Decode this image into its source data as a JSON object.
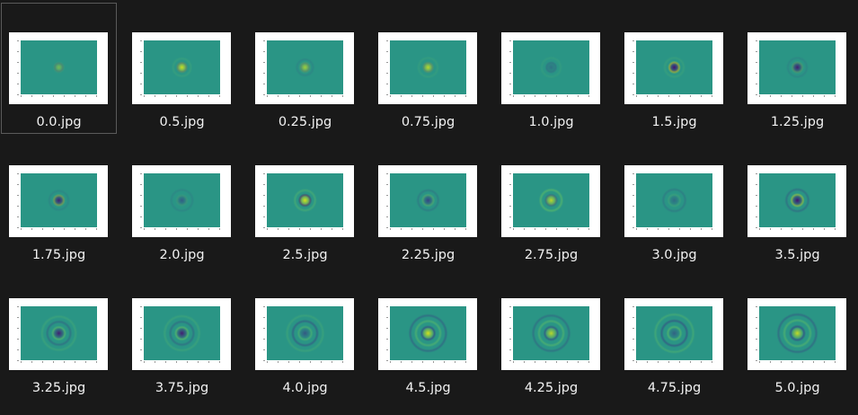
{
  "colors": {
    "background": "#191919",
    "selection_border": "#5a5a5a",
    "label": "#f2f2f2",
    "thumbnail_frame": "#ffffff",
    "plot_base": "#2a9585",
    "plot_bright": "#d2e21b",
    "plot_light": "#6fcc5b",
    "plot_dark": "#3a2f82",
    "plot_deep": "#45106f"
  },
  "files": [
    {
      "name": "0.0.jpg",
      "selected": true,
      "icon": "thumbnail-image",
      "pattern": {
        "center": "bright",
        "strength": 0.45,
        "rings": [
          {
            "r": 0.18,
            "tone": "dark",
            "a": 0.25
          }
        ]
      }
    },
    {
      "name": "0.5.jpg",
      "selected": false,
      "icon": "thumbnail-image",
      "pattern": {
        "center": "bright",
        "strength": 0.95,
        "rings": [
          {
            "r": 0.2,
            "tone": "dark",
            "a": 0.35
          },
          {
            "r": 0.42,
            "tone": "light",
            "a": 0.15
          }
        ]
      }
    },
    {
      "name": "0.25.jpg",
      "selected": false,
      "icon": "thumbnail-image",
      "pattern": {
        "center": "bright",
        "strength": 0.7,
        "rings": [
          {
            "r": 0.18,
            "tone": "dark",
            "a": 0.25
          },
          {
            "r": 0.38,
            "tone": "dark",
            "a": 0.12
          }
        ]
      }
    },
    {
      "name": "0.75.jpg",
      "selected": false,
      "icon": "thumbnail-image",
      "pattern": {
        "center": "bright",
        "strength": 0.85,
        "rings": [
          {
            "r": 0.2,
            "tone": "dark",
            "a": 0.25
          },
          {
            "r": 0.45,
            "tone": "light",
            "a": 0.12
          }
        ]
      }
    },
    {
      "name": "1.0.jpg",
      "selected": false,
      "icon": "thumbnail-image",
      "pattern": {
        "center": "dark",
        "strength": 0.35,
        "rings": [
          {
            "r": 0.22,
            "tone": "dark",
            "a": 0.18
          },
          {
            "r": 0.45,
            "tone": "light",
            "a": 0.1
          }
        ]
      }
    },
    {
      "name": "1.5.jpg",
      "selected": false,
      "icon": "thumbnail-image",
      "pattern": {
        "center": "deep",
        "strength": 1.0,
        "rings": [
          {
            "r": 0.22,
            "tone": "bright",
            "a": 0.7
          },
          {
            "r": 0.45,
            "tone": "light",
            "a": 0.15
          }
        ]
      }
    },
    {
      "name": "1.25.jpg",
      "selected": false,
      "icon": "thumbnail-image",
      "pattern": {
        "center": "deep",
        "strength": 0.9,
        "rings": [
          {
            "r": 0.22,
            "tone": "light",
            "a": 0.45
          },
          {
            "r": 0.45,
            "tone": "dark",
            "a": 0.12
          }
        ]
      }
    },
    {
      "name": "1.75.jpg",
      "selected": false,
      "icon": "thumbnail-image",
      "pattern": {
        "center": "deep",
        "strength": 0.9,
        "rings": [
          {
            "r": 0.22,
            "tone": "bright",
            "a": 0.45
          },
          {
            "r": 0.45,
            "tone": "dark",
            "a": 0.12
          }
        ]
      }
    },
    {
      "name": "2.0.jpg",
      "selected": false,
      "icon": "thumbnail-image",
      "pattern": {
        "center": "dark",
        "strength": 0.55,
        "rings": [
          {
            "r": 0.22,
            "tone": "light",
            "a": 0.2
          },
          {
            "r": 0.5,
            "tone": "dark",
            "a": 0.12
          }
        ]
      }
    },
    {
      "name": "2.5.jpg",
      "selected": false,
      "icon": "thumbnail-image",
      "pattern": {
        "center": "bright",
        "strength": 1.0,
        "rings": [
          {
            "r": 0.24,
            "tone": "deep",
            "a": 0.6
          },
          {
            "r": 0.48,
            "tone": "light",
            "a": 0.3
          }
        ]
      }
    },
    {
      "name": "2.25.jpg",
      "selected": false,
      "icon": "thumbnail-image",
      "pattern": {
        "center": "dark",
        "strength": 0.8,
        "rings": [
          {
            "r": 0.24,
            "tone": "light",
            "a": 0.45
          },
          {
            "r": 0.48,
            "tone": "dark",
            "a": 0.2
          }
        ]
      }
    },
    {
      "name": "2.75.jpg",
      "selected": false,
      "icon": "thumbnail-image",
      "pattern": {
        "center": "bright",
        "strength": 0.85,
        "rings": [
          {
            "r": 0.24,
            "tone": "dark",
            "a": 0.4
          },
          {
            "r": 0.5,
            "tone": "light",
            "a": 0.45
          }
        ]
      }
    },
    {
      "name": "3.0.jpg",
      "selected": false,
      "icon": "thumbnail-image",
      "pattern": {
        "center": "dark",
        "strength": 0.4,
        "rings": [
          {
            "r": 0.26,
            "tone": "light",
            "a": 0.2
          },
          {
            "r": 0.52,
            "tone": "dark",
            "a": 0.2
          }
        ]
      }
    },
    {
      "name": "3.5.jpg",
      "selected": false,
      "icon": "thumbnail-image",
      "pattern": {
        "center": "deep",
        "strength": 1.0,
        "rings": [
          {
            "r": 0.26,
            "tone": "bright",
            "a": 0.5
          },
          {
            "r": 0.52,
            "tone": "dark",
            "a": 0.3
          }
        ]
      }
    },
    {
      "name": "3.25.jpg",
      "selected": false,
      "icon": "thumbnail-image",
      "pattern": {
        "center": "deep",
        "strength": 0.9,
        "rings": [
          {
            "r": 0.28,
            "tone": "light",
            "a": 0.45
          },
          {
            "r": 0.55,
            "tone": "dark",
            "a": 0.3
          },
          {
            "r": 0.8,
            "tone": "light",
            "a": 0.2
          }
        ]
      }
    },
    {
      "name": "3.75.jpg",
      "selected": false,
      "icon": "thumbnail-image",
      "pattern": {
        "center": "deep",
        "strength": 0.9,
        "rings": [
          {
            "r": 0.28,
            "tone": "light",
            "a": 0.5
          },
          {
            "r": 0.55,
            "tone": "dark",
            "a": 0.3
          },
          {
            "r": 0.82,
            "tone": "light",
            "a": 0.2
          }
        ]
      }
    },
    {
      "name": "4.0.jpg",
      "selected": false,
      "icon": "thumbnail-image",
      "pattern": {
        "center": "dark",
        "strength": 0.6,
        "rings": [
          {
            "r": 0.3,
            "tone": "light",
            "a": 0.35
          },
          {
            "r": 0.58,
            "tone": "dark",
            "a": 0.4
          },
          {
            "r": 0.85,
            "tone": "light",
            "a": 0.2
          }
        ]
      }
    },
    {
      "name": "4.5.jpg",
      "selected": false,
      "icon": "thumbnail-image",
      "pattern": {
        "center": "bright",
        "strength": 1.0,
        "rings": [
          {
            "r": 0.3,
            "tone": "dark",
            "a": 0.5
          },
          {
            "r": 0.58,
            "tone": "light",
            "a": 0.4
          },
          {
            "r": 0.85,
            "tone": "dark",
            "a": 0.35
          }
        ]
      }
    },
    {
      "name": "4.25.jpg",
      "selected": false,
      "icon": "thumbnail-image",
      "pattern": {
        "center": "bright",
        "strength": 0.85,
        "rings": [
          {
            "r": 0.3,
            "tone": "dark",
            "a": 0.45
          },
          {
            "r": 0.58,
            "tone": "light",
            "a": 0.4
          },
          {
            "r": 0.85,
            "tone": "dark",
            "a": 0.3
          }
        ]
      }
    },
    {
      "name": "4.75.jpg",
      "selected": false,
      "icon": "thumbnail-image",
      "pattern": {
        "center": "dark",
        "strength": 0.5,
        "rings": [
          {
            "r": 0.3,
            "tone": "light",
            "a": 0.45
          },
          {
            "r": 0.6,
            "tone": "dark",
            "a": 0.45
          },
          {
            "r": 0.9,
            "tone": "light",
            "a": 0.3
          }
        ]
      }
    },
    {
      "name": "5.0.jpg",
      "selected": false,
      "icon": "thumbnail-image",
      "pattern": {
        "center": "bright",
        "strength": 0.9,
        "rings": [
          {
            "r": 0.32,
            "tone": "dark",
            "a": 0.5
          },
          {
            "r": 0.62,
            "tone": "light",
            "a": 0.4
          },
          {
            "r": 0.9,
            "tone": "dark",
            "a": 0.35
          }
        ]
      }
    }
  ]
}
